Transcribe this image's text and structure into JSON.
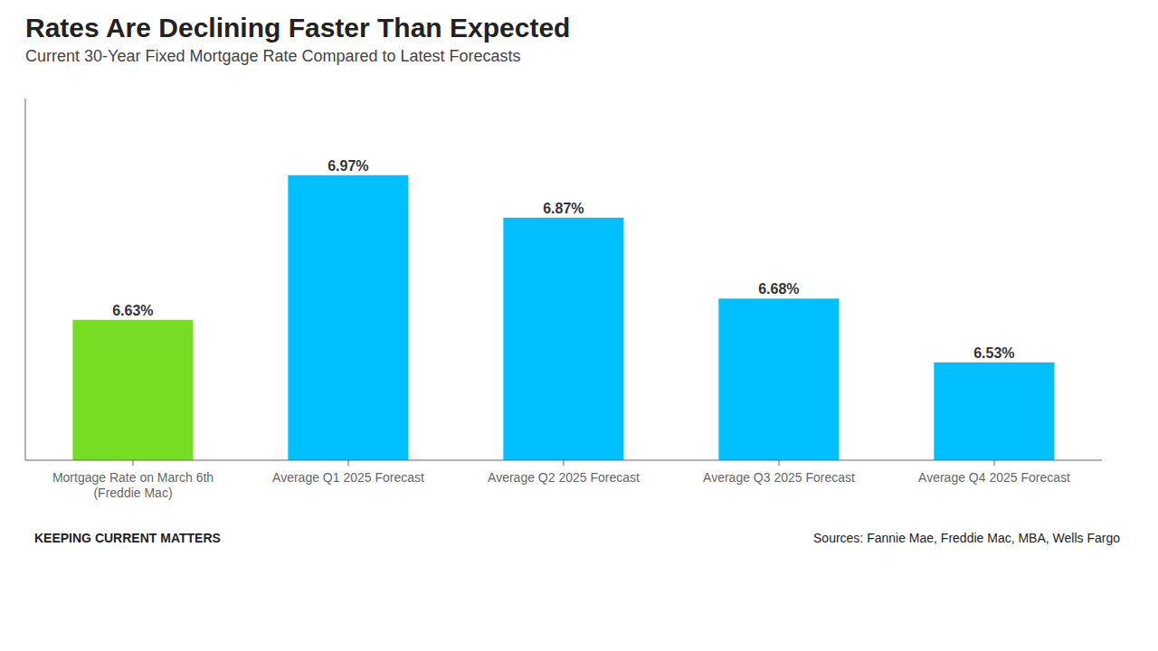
{
  "chart_data": {
    "type": "bar",
    "title": "Rates Are Declining Faster Than Expected",
    "subtitle": "Current 30-Year Fixed Mortgage Rate Compared to Latest Forecasts",
    "categories": [
      "Mortgage Rate on March 6th\n(Freddie Mac)",
      "Average Q1 2025 Forecast",
      "Average Q2 2025 Forecast",
      "Average Q3 2025 Forecast",
      "Average Q4 2025 Forecast"
    ],
    "values": [
      6.63,
      6.97,
      6.87,
      6.68,
      6.53
    ],
    "value_labels": [
      "6.63%",
      "6.97%",
      "6.87%",
      "6.68%",
      "6.53%"
    ],
    "colors": [
      "#77dd22",
      "#00bfff",
      "#00bfff",
      "#00bfff",
      "#00bfff"
    ],
    "ylim": [
      6.3,
      7.15
    ],
    "grid": false,
    "data_labels": true,
    "tick_labels": "x",
    "annotations": [
      "KEEPING CURRENT MATTERS",
      "Sources: Fannie Mae, Freddie Mac, MBA, Wells Fargo"
    ]
  }
}
